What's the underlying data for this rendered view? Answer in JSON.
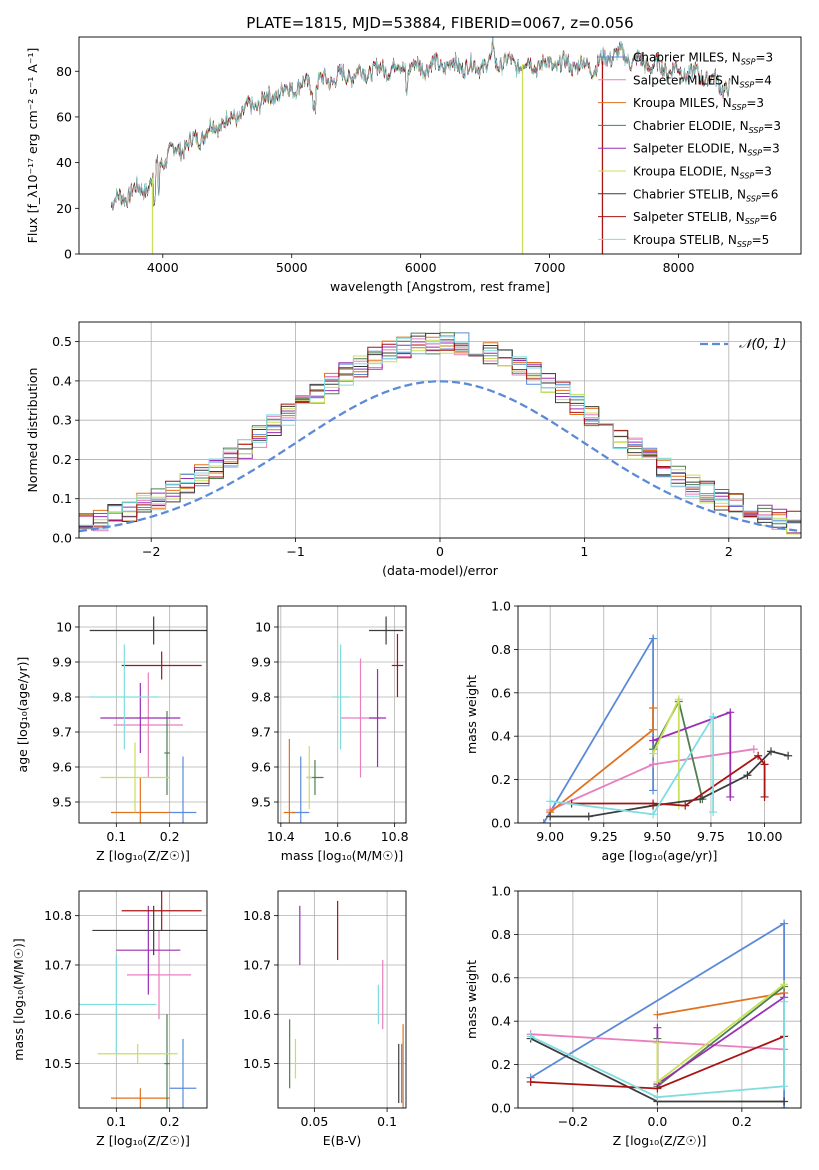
{
  "colors": {
    "Chabrier MILES": "#5b8bd8",
    "Salpeter MILES": "#e87fbf",
    "Kroupa MILES": "#e0721f",
    "Chabrier ELODIE": "#4f7f50",
    "Salpeter ELODIE": "#9a2fb5",
    "Kroupa ELODIE": "#c8e05a",
    "Chabrier STELIB": "#3d3d3d",
    "Salpeter STELIB": "#a81414",
    "Kroupa STELIB": "#7fdde0"
  },
  "chart_data": [
    {
      "id": "spectrum",
      "type": "line",
      "title": "PLATE=1815, MJD=53884, FIBERID=0067, z=0.056",
      "xlabel": "wavelength [Angstrom, rest frame]",
      "ylabel": "Flux [f_λ10⁻¹⁷ erg cm⁻² s⁻¹ A⁻¹]",
      "xlim": [
        3350,
        8950
      ],
      "ylim": [
        0,
        95
      ],
      "xticks": [
        4000,
        5000,
        6000,
        7000,
        8000
      ],
      "yticks": [
        0,
        20,
        40,
        60,
        80
      ],
      "legend_loc": "right",
      "legend": [
        {
          "model": "Chabrier MILES",
          "label": "Chabrier MILES, N",
          "sub": "SSP",
          "n": "=3"
        },
        {
          "model": "Salpeter MILES",
          "label": "Salpeter MILES, N",
          "sub": "SSP",
          "n": "=4"
        },
        {
          "model": "Kroupa MILES",
          "label": "Kroupa MILES, N",
          "sub": "SSP",
          "n": "=3"
        },
        {
          "model": "Chabrier ELODIE",
          "label": "Chabrier ELODIE, N",
          "sub": "SSP",
          "n": "=3"
        },
        {
          "model": "Salpeter ELODIE",
          "label": "Salpeter ELODIE, N",
          "sub": "SSP",
          "n": "=3"
        },
        {
          "model": "Kroupa ELODIE",
          "label": "Kroupa ELODIE, N",
          "sub": "SSP",
          "n": "=3"
        },
        {
          "model": "Chabrier STELIB",
          "label": "Chabrier STELIB, N",
          "sub": "SSP",
          "n": "=6"
        },
        {
          "model": "Salpeter STELIB",
          "label": "Salpeter STELIB, N",
          "sub": "SSP",
          "n": "=6"
        },
        {
          "model": "Kroupa STELIB",
          "label": "Kroupa STELIB, N",
          "sub": "SSP",
          "n": "=5"
        }
      ],
      "continuum": [
        [
          3600,
          22
        ],
        [
          3750,
          27
        ],
        [
          3900,
          30
        ],
        [
          3950,
          38
        ],
        [
          4050,
          44
        ],
        [
          4200,
          48
        ],
        [
          4300,
          52
        ],
        [
          4400,
          56
        ],
        [
          4600,
          61
        ],
        [
          4800,
          68
        ],
        [
          5000,
          73
        ],
        [
          5200,
          75
        ],
        [
          5400,
          78
        ],
        [
          5600,
          80
        ],
        [
          5800,
          82
        ],
        [
          6000,
          82
        ],
        [
          6200,
          83
        ],
        [
          6400,
          82
        ],
        [
          6600,
          84
        ],
        [
          6800,
          83
        ],
        [
          7000,
          83
        ],
        [
          7200,
          83
        ],
        [
          7350,
          82
        ],
        [
          7500,
          88
        ],
        [
          7700,
          84
        ],
        [
          8000,
          80
        ],
        [
          8200,
          78
        ],
        [
          8400,
          72
        ]
      ],
      "dips": [
        {
          "model": "Kroupa ELODIE",
          "x": 3920
        },
        {
          "model": "Kroupa ELODIE",
          "x": 6790
        },
        {
          "model": "Salpeter STELIB",
          "x": 7410
        }
      ]
    },
    {
      "id": "residuals",
      "type": "step",
      "xlabel": "(data-model)/error",
      "ylabel": "Normed distribution",
      "xlim": [
        -2.5,
        2.5
      ],
      "ylim": [
        0,
        0.55
      ],
      "xticks": [
        -2,
        -1,
        0,
        1,
        2
      ],
      "yticks": [
        0.0,
        0.1,
        0.2,
        0.3,
        0.4,
        0.5
      ],
      "legend": "𝒩(0, 1)",
      "legend_loc": "upper right",
      "gaussian": {
        "mu": 0,
        "sigma": 1,
        "color": "#5b8bd8"
      },
      "bin_width": 0.1
    },
    {
      "id": "age-vs-Z",
      "type": "errorbar",
      "xlabel": "Z [log₁₀(Z/Z☉)]",
      "ylabel": "age  [log₁₀(age/yr)]",
      "xlim": [
        0.03,
        0.27
      ],
      "ylim": [
        9.44,
        10.06
      ],
      "xticks": [
        0.1,
        0.2
      ],
      "yticks": [
        9.5,
        9.6,
        9.7,
        9.8,
        9.9,
        10.0
      ],
      "points": [
        {
          "model": "Chabrier MILES",
          "x": 0.225,
          "xerr": 0.025,
          "y": 9.47,
          "yerr": 0.16
        },
        {
          "model": "Salpeter MILES",
          "x": 0.16,
          "xerr": 0.065,
          "y": 9.72,
          "yerr": 0.15
        },
        {
          "model": "Kroupa MILES",
          "x": 0.145,
          "xerr": 0.055,
          "y": 9.47,
          "yerr": 0.1
        },
        {
          "model": "Chabrier ELODIE",
          "x": 0.195,
          "xerr": 0.005,
          "y": 9.64,
          "yerr": 0.12
        },
        {
          "model": "Salpeter ELODIE",
          "x": 0.145,
          "xerr": 0.075,
          "y": 9.74,
          "yerr": 0.1
        },
        {
          "model": "Kroupa ELODIE",
          "x": 0.135,
          "xerr": 0.065,
          "y": 9.57,
          "yerr": 0.1
        },
        {
          "model": "Chabrier STELIB",
          "x": 0.17,
          "xerr": 0.12,
          "y": 9.99,
          "yerr": 0.04
        },
        {
          "model": "Salpeter STELIB",
          "x": 0.185,
          "xerr": 0.075,
          "y": 9.89,
          "yerr": 0.04
        },
        {
          "model": "Kroupa STELIB",
          "x": 0.115,
          "xerr": 0.065,
          "y": 9.8,
          "yerr": 0.15
        }
      ]
    },
    {
      "id": "age-vs-mass",
      "type": "errorbar",
      "xlabel": "mass [log₁₀(M/M☉)]",
      "ylabel": "",
      "xlim": [
        10.39,
        10.84
      ],
      "ylim": [
        9.44,
        10.06
      ],
      "xticks": [
        10.4,
        10.6,
        10.8
      ],
      "yticks": [
        9.5,
        9.6,
        9.7,
        9.8,
        9.9,
        10.0
      ],
      "points": [
        {
          "model": "Chabrier MILES",
          "x": 10.47,
          "xerr": 0.03,
          "y": 9.47,
          "yerr": 0.16
        },
        {
          "model": "Salpeter MILES",
          "x": 10.68,
          "xerr": 0.07,
          "y": 9.74,
          "yerr": 0.17
        },
        {
          "model": "Kroupa MILES",
          "x": 10.43,
          "xerr": 0.02,
          "y": 9.47,
          "yerr": 0.21
        },
        {
          "model": "Chabrier ELODIE",
          "x": 10.52,
          "xerr": 0.03,
          "y": 9.57,
          "yerr": 0.05
        },
        {
          "model": "Salpeter ELODIE",
          "x": 10.74,
          "xerr": 0.03,
          "y": 9.74,
          "yerr": 0.14
        },
        {
          "model": "Kroupa ELODIE",
          "x": 10.5,
          "xerr": 0.01,
          "y": 9.57,
          "yerr": 0.09
        },
        {
          "model": "Chabrier STELIB",
          "x": 10.77,
          "xerr": 0.06,
          "y": 9.99,
          "yerr": 0.04
        },
        {
          "model": "Salpeter STELIB",
          "x": 10.81,
          "xerr": 0.02,
          "y": 9.89,
          "yerr": 0.09
        },
        {
          "model": "Kroupa STELIB",
          "x": 10.61,
          "xerr": 0.03,
          "y": 9.8,
          "yerr": 0.15
        }
      ]
    },
    {
      "id": "weight-vs-age",
      "type": "line",
      "xlabel": "age  [log₁₀(age/yr)]",
      "ylabel": "mass weight",
      "xlim": [
        8.85,
        10.17
      ],
      "ylim": [
        0,
        1.0
      ],
      "xticks": [
        9.0,
        9.25,
        9.5,
        9.75,
        10.0
      ],
      "xticklabels": [
        "9.00",
        "9.25",
        "9.50",
        "9.75",
        "10.00"
      ],
      "yticks": [
        0.0,
        0.2,
        0.4,
        0.6,
        0.8,
        1.0
      ],
      "series": [
        {
          "model": "Chabrier MILES",
          "x": [
            8.97,
            9.48,
            9.48
          ],
          "y": [
            0.0,
            0.85,
            0.15
          ]
        },
        {
          "model": "Salpeter MILES",
          "x": [
            9.0,
            9.48,
            9.95
          ],
          "y": [
            0.06,
            0.27,
            0.34
          ]
        },
        {
          "model": "Kroupa MILES",
          "x": [
            9.0,
            9.48,
            9.48
          ],
          "y": [
            0.05,
            0.43,
            0.53
          ]
        },
        {
          "model": "Chabrier ELODIE",
          "x": [
            9.48,
            9.6,
            9.71
          ],
          "y": [
            0.34,
            0.56,
            0.11
          ]
        },
        {
          "model": "Salpeter ELODIE",
          "x": [
            9.48,
            9.84,
            9.84
          ],
          "y": [
            0.38,
            0.51,
            0.12
          ]
        },
        {
          "model": "Kroupa ELODIE",
          "x": [
            9.48,
            9.6,
            9.6
          ],
          "y": [
            0.32,
            0.57,
            0.08
          ]
        },
        {
          "model": "Chabrier STELIB",
          "x": [
            9.0,
            9.18,
            9.48,
            9.7,
            9.92,
            10.03,
            10.11
          ],
          "y": [
            0.03,
            0.03,
            0.08,
            0.11,
            0.22,
            0.33,
            0.31
          ]
        },
        {
          "model": "Salpeter STELIB",
          "x": [
            9.1,
            9.48,
            9.63,
            9.97,
            10.0,
            10.0
          ],
          "y": [
            0.09,
            0.09,
            0.08,
            0.31,
            0.27,
            0.12
          ]
        },
        {
          "model": "Kroupa STELIB",
          "x": [
            9.0,
            9.48,
            9.76,
            9.76,
            9.76
          ],
          "y": [
            0.1,
            0.04,
            0.49,
            0.49,
            0.05
          ]
        }
      ]
    },
    {
      "id": "mass-vs-Z",
      "type": "errorbar",
      "xlabel": "Z [log₁₀(Z/Z☉)]",
      "ylabel": "mass [log₁₀(M/M☉)]",
      "xlim": [
        0.03,
        0.27
      ],
      "ylim": [
        10.41,
        10.85
      ],
      "xticks": [
        0.1,
        0.2
      ],
      "yticks": [
        10.5,
        10.6,
        10.7,
        10.8
      ],
      "points": [
        {
          "model": "Chabrier MILES",
          "x": 0.225,
          "xerr": 0.025,
          "y": 10.45,
          "yerr": 0.1
        },
        {
          "model": "Salpeter MILES",
          "x": 0.18,
          "xerr": 0.06,
          "y": 10.68,
          "yerr": 0.09
        },
        {
          "model": "Kroupa MILES",
          "x": 0.145,
          "xerr": 0.055,
          "y": 10.43,
          "yerr": 0.02
        },
        {
          "model": "Chabrier ELODIE",
          "x": 0.195,
          "xerr": 0.005,
          "y": 10.5,
          "yerr": 0.1
        },
        {
          "model": "Salpeter ELODIE",
          "x": 0.16,
          "xerr": 0.06,
          "y": 10.73,
          "yerr": 0.09
        },
        {
          "model": "Kroupa ELODIE",
          "x": 0.14,
          "xerr": 0.075,
          "y": 10.52,
          "yerr": 0.02
        },
        {
          "model": "Chabrier STELIB",
          "x": 0.17,
          "xerr": 0.115,
          "y": 10.77,
          "yerr": 0.05
        },
        {
          "model": "Salpeter STELIB",
          "x": 0.185,
          "xerr": 0.075,
          "y": 10.81,
          "yerr": 0.04
        },
        {
          "model": "Kroupa STELIB",
          "x": 0.1,
          "xerr": 0.075,
          "y": 10.62,
          "yerr": 0.1
        }
      ]
    },
    {
      "id": "mass-vs-EBV",
      "type": "errorbar",
      "xlabel": "E(B-V)",
      "ylabel": "",
      "xlim": [
        0.025,
        0.113
      ],
      "ylim": [
        10.41,
        10.85
      ],
      "xticks": [
        0.05,
        0.1
      ],
      "yticks": [
        10.5,
        10.6,
        10.7,
        10.8
      ],
      "points": [
        {
          "model": "Chabrier MILES",
          "x": 0.11,
          "xerr": 0,
          "y": 10.48,
          "yerr": 0.06
        },
        {
          "model": "Salpeter MILES",
          "x": 0.097,
          "xerr": 0,
          "y": 10.64,
          "yerr": 0.07
        },
        {
          "model": "Kroupa MILES",
          "x": 0.111,
          "xerr": 0,
          "y": 10.48,
          "yerr": 0.1
        },
        {
          "model": "Chabrier ELODIE",
          "x": 0.033,
          "xerr": 0,
          "y": 10.52,
          "yerr": 0.07
        },
        {
          "model": "Salpeter ELODIE",
          "x": 0.04,
          "xerr": 0,
          "y": 10.76,
          "yerr": 0.06
        },
        {
          "model": "Kroupa ELODIE",
          "x": 0.037,
          "xerr": 0,
          "y": 10.51,
          "yerr": 0.04
        },
        {
          "model": "Chabrier STELIB",
          "x": 0.108,
          "xerr": 0,
          "y": 10.48,
          "yerr": 0.06
        },
        {
          "model": "Salpeter STELIB",
          "x": 0.066,
          "xerr": 0,
          "y": 10.77,
          "yerr": 0.06
        },
        {
          "model": "Kroupa STELIB",
          "x": 0.094,
          "xerr": 0,
          "y": 10.62,
          "yerr": 0.04
        }
      ]
    },
    {
      "id": "weight-vs-Z",
      "type": "line",
      "xlabel": "Z [log₁₀(Z/Z☉)]",
      "ylabel": "mass weight",
      "xlim": [
        -0.33,
        0.34
      ],
      "ylim": [
        0,
        1.0
      ],
      "xticks": [
        -0.2,
        0.0,
        0.2
      ],
      "xticklabels": [
        "−0.2",
        "0.0",
        "0.2"
      ],
      "yticks": [
        0.0,
        0.2,
        0.4,
        0.6,
        0.8,
        1.0
      ],
      "series": [
        {
          "model": "Chabrier MILES",
          "x": [
            -0.3,
            0.3,
            0.3
          ],
          "y": [
            0.14,
            0.85,
            0.0
          ]
        },
        {
          "model": "Salpeter MILES",
          "x": [
            -0.3,
            0.3
          ],
          "y": [
            0.34,
            0.27
          ]
        },
        {
          "model": "Kroupa MILES",
          "x": [
            0.0,
            0.3
          ],
          "y": [
            0.43,
            0.53
          ]
        },
        {
          "model": "Chabrier ELODIE",
          "x": [
            0.0,
            0.0,
            0.3
          ],
          "y": [
            0.32,
            0.1,
            0.56
          ]
        },
        {
          "model": "Salpeter ELODIE",
          "x": [
            0.0,
            0.0,
            0.3
          ],
          "y": [
            0.37,
            0.11,
            0.51
          ]
        },
        {
          "model": "Kroupa ELODIE",
          "x": [
            0.0,
            0.0,
            0.3
          ],
          "y": [
            0.3,
            0.12,
            0.57
          ]
        },
        {
          "model": "Chabrier STELIB",
          "x": [
            -0.3,
            0.0,
            0.3
          ],
          "y": [
            0.32,
            0.03,
            0.03
          ]
        },
        {
          "model": "Salpeter STELIB",
          "x": [
            -0.3,
            0.0,
            0.3
          ],
          "y": [
            0.12,
            0.09,
            0.33
          ]
        },
        {
          "model": "Kroupa STELIB",
          "x": [
            -0.3,
            0.0,
            0.3,
            0.3
          ],
          "y": [
            0.33,
            0.05,
            0.1,
            0.49
          ]
        }
      ]
    }
  ]
}
